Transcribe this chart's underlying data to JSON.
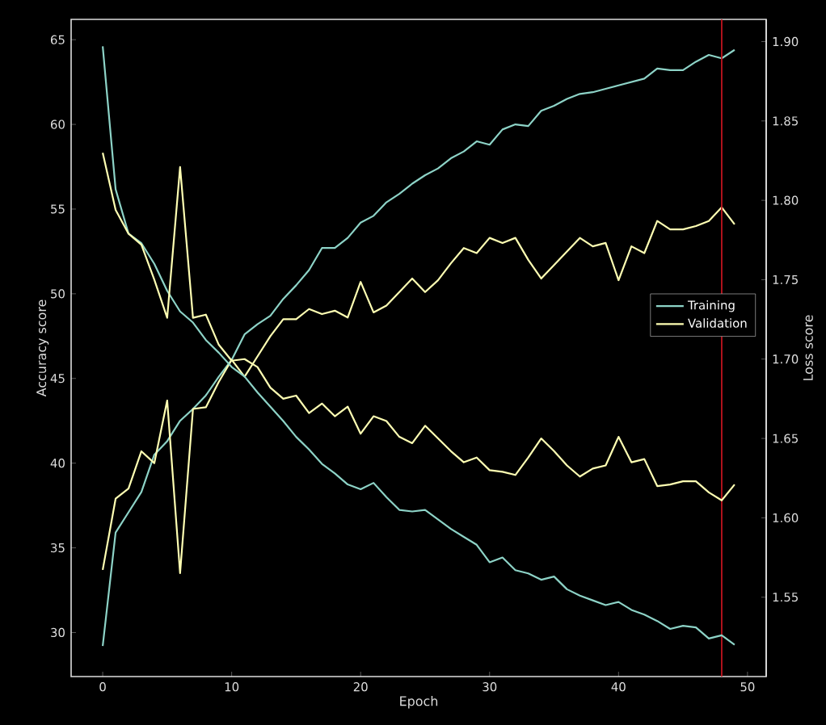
{
  "chart_data": {
    "type": "line",
    "xlabel": "Epoch",
    "ylabel": "Accuracy score",
    "y2label": "Loss score",
    "x": [
      0,
      1,
      2,
      3,
      4,
      5,
      6,
      7,
      8,
      9,
      10,
      11,
      12,
      13,
      14,
      15,
      16,
      17,
      18,
      19,
      20,
      21,
      22,
      23,
      24,
      25,
      26,
      27,
      28,
      29,
      30,
      31,
      32,
      33,
      34,
      35,
      36,
      37,
      38,
      39,
      40,
      41,
      42,
      43,
      44,
      45,
      46,
      47,
      48,
      49
    ],
    "xlim": [
      -2.45,
      51.45
    ],
    "xticks": [
      0,
      10,
      20,
      30,
      40,
      50
    ],
    "ylim": [
      27.4,
      66.2
    ],
    "yticks": [
      30,
      35,
      40,
      45,
      50,
      55,
      60,
      65
    ],
    "y2lim": [
      1.5,
      1.914
    ],
    "y2ticks": [
      {
        "value": 1.55,
        "label": "1.55"
      },
      {
        "value": 1.6,
        "label": "1.60"
      },
      {
        "value": 1.65,
        "label": "1.65"
      },
      {
        "value": 1.7,
        "label": "1.70"
      },
      {
        "value": 1.75,
        "label": "1.75"
      },
      {
        "value": 1.8,
        "label": "1.80"
      },
      {
        "value": 1.85,
        "label": "1.85"
      },
      {
        "value": 1.9,
        "label": "1.90"
      }
    ],
    "legend": "right",
    "ref_lines": [
      {
        "axis": "x",
        "value": 48,
        "color": "#c0141e"
      }
    ],
    "series": [
      {
        "name": "Training",
        "color": "#8dd3c7",
        "values": [
          29.2,
          35.9,
          37.1,
          38.3,
          40.5,
          41.3,
          42.5,
          43.2,
          44.0,
          45.1,
          46.1,
          47.6,
          48.2,
          48.7,
          49.7,
          50.5,
          51.4,
          52.7,
          52.7,
          53.3,
          54.2,
          54.6,
          55.4,
          55.9,
          56.5,
          57.0,
          57.4,
          58.0,
          58.4,
          59.0,
          58.8,
          59.7,
          60.0,
          59.9,
          60.8,
          61.1,
          61.5,
          61.8,
          61.9,
          62.1,
          62.3,
          62.5,
          62.7,
          63.3,
          63.2,
          63.2,
          63.7,
          64.1,
          63.9,
          64.4
        ]
      },
      {
        "name": "Validation",
        "color": "#ffffb3",
        "values": [
          33.7,
          37.9,
          38.5,
          40.7,
          40.0,
          43.7,
          33.5,
          43.2,
          43.3,
          44.8,
          46.1,
          45.1,
          46.3,
          47.5,
          48.5,
          48.5,
          49.1,
          48.8,
          49.0,
          48.6,
          50.7,
          48.9,
          49.3,
          50.1,
          50.9,
          50.1,
          50.8,
          51.8,
          52.7,
          52.4,
          53.3,
          53.0,
          53.3,
          52.0,
          50.9,
          51.7,
          52.5,
          53.3,
          52.8,
          53.0,
          50.8,
          52.8,
          52.4,
          54.3,
          53.8,
          53.8,
          54.0,
          54.3,
          55.1,
          54.1
        ]
      },
      {
        "color": "#8dd3c7",
        "axis": "y2",
        "values": [
          1.897,
          1.807,
          1.779,
          1.773,
          1.76,
          1.743,
          1.73,
          1.723,
          1.712,
          1.704,
          1.695,
          1.689,
          1.679,
          1.67,
          1.661,
          1.651,
          1.643,
          1.634,
          1.628,
          1.621,
          1.618,
          1.622,
          1.613,
          1.605,
          1.604,
          1.605,
          1.599,
          1.593,
          1.588,
          1.583,
          1.572,
          1.575,
          1.567,
          1.565,
          1.561,
          1.563,
          1.555,
          1.551,
          1.548,
          1.545,
          1.547,
          1.542,
          1.539,
          1.535,
          1.53,
          1.532,
          1.531,
          1.524,
          1.526,
          1.52
        ]
      },
      {
        "color": "#ffffb3",
        "axis": "y2",
        "values": [
          1.83,
          1.794,
          1.779,
          1.772,
          1.75,
          1.726,
          1.821,
          1.726,
          1.728,
          1.709,
          1.699,
          1.7,
          1.695,
          1.682,
          1.675,
          1.677,
          1.666,
          1.672,
          1.664,
          1.67,
          1.653,
          1.664,
          1.661,
          1.651,
          1.647,
          1.658,
          1.65,
          1.642,
          1.635,
          1.638,
          1.63,
          1.629,
          1.627,
          1.638,
          1.65,
          1.642,
          1.633,
          1.626,
          1.631,
          1.633,
          1.651,
          1.635,
          1.637,
          1.62,
          1.621,
          1.623,
          1.623,
          1.616,
          1.611,
          1.621
        ]
      }
    ]
  }
}
